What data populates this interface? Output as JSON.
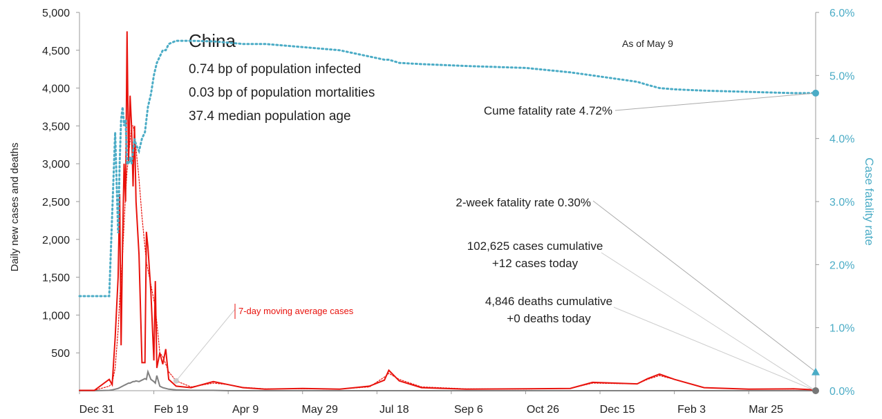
{
  "chart_data": {
    "type": "line",
    "title": "China",
    "info_lines": [
      "0.74 bp of population infected",
      "0.03 bp of population mortalities",
      "37.4 median population age"
    ],
    "as_of": "As of May 9",
    "y_label": "Daily new cases and deaths",
    "y2_label": "Case fatality rate",
    "xlim": [
      0,
      495
    ],
    "xticks": [
      {
        "value": 0,
        "label": "Dec 31"
      },
      {
        "value": 50,
        "label": "Feb 19"
      },
      {
        "value": 100,
        "label": "Apr 9"
      },
      {
        "value": 150,
        "label": "May 29"
      },
      {
        "value": 200,
        "label": "Jul 18"
      },
      {
        "value": 250,
        "label": "Sep 6"
      },
      {
        "value": 300,
        "label": "Oct 26"
      },
      {
        "value": 350,
        "label": "Dec 15"
      },
      {
        "value": 400,
        "label": "Feb 3"
      },
      {
        "value": 450,
        "label": "Mar 25"
      }
    ],
    "ylim": [
      0,
      5000
    ],
    "yticks": [
      500,
      {
        "value": 1000,
        "label": "1,000"
      },
      {
        "value": 1500,
        "label": "1,500"
      },
      {
        "value": 2000,
        "label": "2,000"
      },
      {
        "value": 2500,
        "label": "2,500"
      },
      {
        "value": 3000,
        "label": "3,000"
      },
      {
        "value": 3500,
        "label": "3,500"
      },
      {
        "value": 4000,
        "label": "4,000"
      },
      {
        "value": 4500,
        "label": "4,500"
      },
      {
        "value": 5000,
        "label": "5,000"
      }
    ],
    "y2lim": [
      0,
      6
    ],
    "y2ticks": [
      {
        "value": 0,
        "label": "0.0%"
      },
      {
        "value": 1,
        "label": "1.0%"
      },
      {
        "value": 2,
        "label": "2.0%"
      },
      {
        "value": 3,
        "label": "3.0%"
      },
      {
        "value": 4,
        "label": "4.0%"
      },
      {
        "value": 5,
        "label": "5.0%"
      },
      {
        "value": 6,
        "label": "6.0%"
      }
    ],
    "x": [
      0,
      10,
      20,
      22,
      24,
      26,
      27,
      28,
      29,
      30,
      31,
      32,
      33,
      34,
      35,
      36,
      37,
      38,
      40,
      42,
      44,
      45,
      46,
      48,
      50,
      51,
      52,
      54,
      56,
      58,
      60,
      65,
      75,
      90,
      100,
      110,
      125,
      150,
      175,
      195,
      205,
      208,
      215,
      230,
      260,
      300,
      330,
      345,
      360,
      375,
      382,
      390,
      400,
      420,
      450,
      480,
      495
    ],
    "series": [
      {
        "name": "Daily new cases",
        "color": "#e8120c",
        "style": "solid",
        "values": [
          5,
          5,
          150,
          80,
          700,
          1500,
          2600,
          600,
          2000,
          3000,
          2500,
          4750,
          3000,
          3900,
          3500,
          2700,
          3500,
          2500,
          1800,
          370,
          370,
          2100,
          1900,
          1300,
          400,
          1450,
          300,
          500,
          350,
          550,
          150,
          60,
          40,
          120,
          80,
          40,
          20,
          30,
          20,
          60,
          140,
          270,
          130,
          40,
          20,
          25,
          30,
          110,
          100,
          90,
          160,
          220,
          150,
          40,
          20,
          25,
          12
        ]
      },
      {
        "name": "7-day moving average cases",
        "color": "#e8120c",
        "style": "dotted",
        "values": [
          5,
          5,
          60,
          100,
          300,
          800,
          1200,
          1500,
          1800,
          2200,
          2600,
          2900,
          3100,
          3300,
          3500,
          3500,
          3400,
          3200,
          2800,
          2300,
          1900,
          1700,
          1600,
          1400,
          1200,
          1100,
          900,
          500,
          450,
          350,
          250,
          130,
          50,
          100,
          80,
          45,
          25,
          25,
          22,
          50,
          180,
          230,
          150,
          50,
          25,
          22,
          30,
          100,
          95,
          90,
          150,
          200,
          150,
          40,
          20,
          22,
          15
        ]
      },
      {
        "name": "Daily new deaths",
        "color": "#808080",
        "style": "solid",
        "values": [
          0,
          0,
          5,
          10,
          20,
          30,
          40,
          50,
          60,
          70,
          80,
          90,
          100,
          100,
          110,
          120,
          120,
          130,
          120,
          140,
          160,
          150,
          250,
          150,
          120,
          100,
          200,
          60,
          40,
          30,
          20,
          10,
          5,
          5,
          0,
          0,
          0,
          0,
          0,
          0,
          0,
          0,
          0,
          0,
          0,
          0,
          0,
          0,
          0,
          0,
          0,
          0,
          0,
          0,
          0,
          0,
          0
        ]
      },
      {
        "name": "Case fatality rate",
        "color": "#4bacc6",
        "style": "dotted-thick",
        "axis": "y2",
        "values": [
          1.5,
          1.5,
          1.5,
          2.8,
          4.1,
          2.5,
          3.6,
          4.3,
          4.5,
          4.2,
          4.3,
          3.6,
          3.6,
          3.7,
          3.6,
          3.8,
          4.0,
          3.9,
          3.8,
          4.0,
          4.1,
          4.3,
          4.5,
          4.7,
          5.0,
          5.1,
          5.2,
          5.3,
          5.4,
          5.4,
          5.5,
          5.55,
          5.55,
          5.54,
          5.52,
          5.5,
          5.5,
          5.45,
          5.4,
          5.3,
          5.25,
          5.25,
          5.2,
          5.18,
          5.15,
          5.12,
          5.05,
          5.0,
          4.95,
          4.9,
          4.85,
          4.8,
          4.78,
          4.76,
          4.74,
          4.72,
          4.72
        ]
      }
    ],
    "annotations": [
      {
        "text": "Cume fatality rate 4.72%",
        "value": 4.72,
        "axis": "y2"
      },
      {
        "text": "2-week fatality rate 0.30%",
        "value": 0.3,
        "axis": "y2"
      },
      {
        "text": "102,625 cases cumulative",
        "text2": "+12 cases today"
      },
      {
        "text": "4,846 deaths cumulative",
        "text2": "+0 deaths today"
      }
    ]
  }
}
